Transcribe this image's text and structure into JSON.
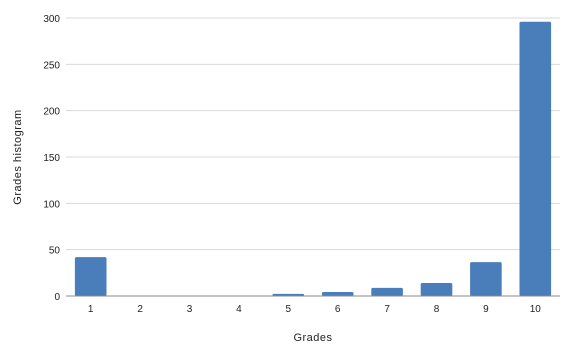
{
  "chart_data": {
    "type": "bar",
    "categories": [
      "1",
      "2",
      "3",
      "4",
      "5",
      "6",
      "7",
      "8",
      "9",
      "10"
    ],
    "values": [
      42,
      0.6,
      0.6,
      0.4,
      2.3,
      4.3,
      8.8,
      14,
      36.5,
      296
    ],
    "xlabel": "Grades",
    "ylabel": "Grades histogram",
    "ylim": [
      0,
      300
    ],
    "yticks": [
      0,
      50,
      100,
      150,
      200,
      250,
      300
    ],
    "grid": true,
    "legend": "none",
    "bar_color": "#4a7ebb"
  }
}
